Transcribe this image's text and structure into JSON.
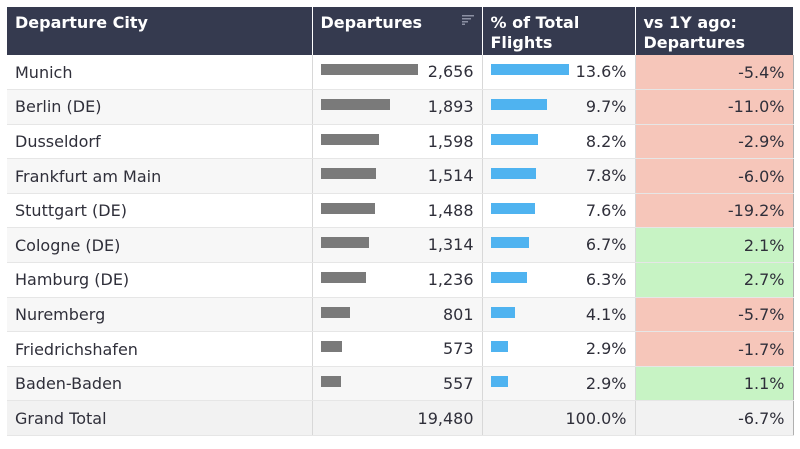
{
  "headers": {
    "city": "Departure City",
    "departures": "Departures",
    "pct": "% of Total Flights",
    "change": "vs 1Y ago: Departures"
  },
  "rows": [
    {
      "city": "Munich",
      "departures": 2656,
      "departures_label": "2,656",
      "pct": 13.6,
      "pct_label": "13.6%",
      "change": -5.4,
      "change_label": "-5.4%"
    },
    {
      "city": "Berlin (DE)",
      "departures": 1893,
      "departures_label": "1,893",
      "pct": 9.7,
      "pct_label": "9.7%",
      "change": -11.0,
      "change_label": "-11.0%"
    },
    {
      "city": "Dusseldorf",
      "departures": 1598,
      "departures_label": "1,598",
      "pct": 8.2,
      "pct_label": "8.2%",
      "change": -2.9,
      "change_label": "-2.9%"
    },
    {
      "city": "Frankfurt am Main",
      "departures": 1514,
      "departures_label": "1,514",
      "pct": 7.8,
      "pct_label": "7.8%",
      "change": -6.0,
      "change_label": "-6.0%"
    },
    {
      "city": "Stuttgart (DE)",
      "departures": 1488,
      "departures_label": "1,488",
      "pct": 7.6,
      "pct_label": "7.6%",
      "change": -19.2,
      "change_label": "-19.2%"
    },
    {
      "city": "Cologne (DE)",
      "departures": 1314,
      "departures_label": "1,314",
      "pct": 6.7,
      "pct_label": "6.7%",
      "change": 2.1,
      "change_label": "2.1%"
    },
    {
      "city": "Hamburg (DE)",
      "departures": 1236,
      "departures_label": "1,236",
      "pct": 6.3,
      "pct_label": "6.3%",
      "change": 2.7,
      "change_label": "2.7%"
    },
    {
      "city": "Nuremberg",
      "departures": 801,
      "departures_label": "801",
      "pct": 4.1,
      "pct_label": "4.1%",
      "change": -5.7,
      "change_label": "-5.7%"
    },
    {
      "city": "Friedrichshafen",
      "departures": 573,
      "departures_label": "573",
      "pct": 2.9,
      "pct_label": "2.9%",
      "change": -1.7,
      "change_label": "-1.7%"
    },
    {
      "city": "Baden-Baden",
      "departures": 557,
      "departures_label": "557",
      "pct": 2.9,
      "pct_label": "2.9%",
      "change": 1.1,
      "change_label": "1.1%"
    }
  ],
  "total": {
    "label": "Grand Total",
    "departures": "19,480",
    "pct": "100.0%",
    "change": "-6.7%"
  },
  "colors": {
    "header_bg": "#353a4f",
    "departures_bar": "#7a7a7a",
    "pct_bar": "#4fb3f0",
    "negative": "#f6c6ba",
    "positive": "#c7f3c4"
  },
  "icons": {
    "sort": "sort-descending-icon"
  },
  "chart_data": {
    "type": "table",
    "columns": [
      "Departure City",
      "Departures",
      "% of Total Flights",
      "vs 1Y ago: Departures"
    ],
    "categories": [
      "Munich",
      "Berlin (DE)",
      "Dusseldorf",
      "Frankfurt am Main",
      "Stuttgart (DE)",
      "Cologne (DE)",
      "Hamburg (DE)",
      "Nuremberg",
      "Friedrichshafen",
      "Baden-Baden"
    ],
    "series": [
      {
        "name": "Departures",
        "values": [
          2656,
          1893,
          1598,
          1514,
          1488,
          1314,
          1236,
          801,
          573,
          557
        ]
      },
      {
        "name": "% of Total Flights",
        "values": [
          13.6,
          9.7,
          8.2,
          7.8,
          7.6,
          6.7,
          6.3,
          4.1,
          2.9,
          2.9
        ]
      },
      {
        "name": "vs 1Y ago: Departures",
        "values": [
          -5.4,
          -11.0,
          -2.9,
          -6.0,
          -19.2,
          2.1,
          2.7,
          -5.7,
          -1.7,
          1.1
        ]
      }
    ],
    "total": {
      "Departures": 19480,
      "% of Total Flights": 100.0,
      "vs 1Y ago: Departures": -6.7
    }
  }
}
